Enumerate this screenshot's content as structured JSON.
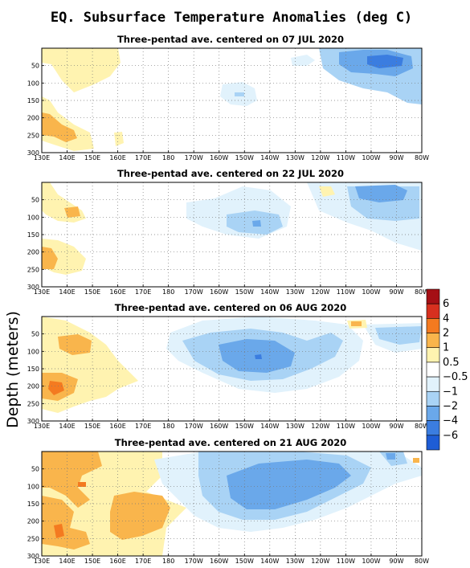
{
  "chart_data": {
    "type": "heatmap",
    "title": "EQ. Subsurface Temperature Anomalies (deg C)",
    "ylabel": "Depth (meters)",
    "x_ticks": [
      "130E",
      "140E",
      "150E",
      "160E",
      "170E",
      "180",
      "170W",
      "160W",
      "150W",
      "140W",
      "130W",
      "120W",
      "110W",
      "100W",
      "90W",
      "80W"
    ],
    "y_ticks": [
      "50",
      "100",
      "150",
      "200",
      "250",
      "300"
    ],
    "xlim": [
      "130E",
      "80W"
    ],
    "ylim": [
      0,
      300
    ],
    "grid": true,
    "colorbar": {
      "labels": [
        "6",
        "4",
        "2",
        "1",
        "0.5",
        "−0.5",
        "−1",
        "−2",
        "−4",
        "−6"
      ],
      "levels": [
        6,
        4,
        2,
        1,
        0.5,
        -0.5,
        -1,
        -2,
        -4,
        -6
      ],
      "colors": [
        "#a50f15",
        "#d7301f",
        "#f47a20",
        "#f9b54c",
        "#fff3b0",
        "#ffffff",
        "#e1f2fc",
        "#a9d3f5",
        "#6aa8ea",
        "#3b7de0",
        "#1e5dd6"
      ]
    },
    "panels": [
      {
        "subtitle": "Three-pentad ave. centered on 07 JUL 2020",
        "features": [
          {
            "lon": 137,
            "depth": 80,
            "anomaly": 0.8
          },
          {
            "lon": 140,
            "depth": 235,
            "anomaly": 1.5
          },
          {
            "lon": 160,
            "depth": 255,
            "anomaly": 0.8
          },
          {
            "lon": 210,
            "depth": 115,
            "anomaly": -0.6
          },
          {
            "lon": 258,
            "depth": 60,
            "anomaly": -1.5
          },
          {
            "lon": 255,
            "depth": 55,
            "anomaly": -2.5
          }
        ]
      },
      {
        "subtitle": "Three-pentad ave. centered on 22 JUL 2020",
        "features": [
          {
            "lon": 140,
            "depth": 90,
            "anomaly": 1.2
          },
          {
            "lon": 136,
            "depth": 210,
            "anomaly": 1.5
          },
          {
            "lon": 210,
            "depth": 120,
            "anomaly": -1.3
          },
          {
            "lon": 255,
            "depth": 75,
            "anomaly": -1.5
          },
          {
            "lon": 258,
            "depth": 45,
            "anomaly": -2.2
          }
        ]
      },
      {
        "subtitle": "Three-pentad ave. centered on 06 AUG 2020",
        "features": [
          {
            "lon": 143,
            "depth": 90,
            "anomaly": 1.2
          },
          {
            "lon": 137,
            "depth": 220,
            "anomaly": 1.8
          },
          {
            "lon": 210,
            "depth": 115,
            "anomaly": -2.6
          },
          {
            "lon": 223,
            "depth": 90,
            "anomaly": -1.3
          },
          {
            "lon": 253,
            "depth": 25,
            "anomaly": 1.2
          }
        ]
      },
      {
        "subtitle": "Three-pentad ave. centered on 21 AUG 2020",
        "features": [
          {
            "lon": 141,
            "depth": 100,
            "anomaly": 2.2
          },
          {
            "lon": 162,
            "depth": 190,
            "anomaly": 1.5
          },
          {
            "lon": 136,
            "depth": 225,
            "anomaly": 2.0
          },
          {
            "lon": 223,
            "depth": 120,
            "anomaly": -2.4
          },
          {
            "lon": 263,
            "depth": 30,
            "anomaly": -1.5
          }
        ]
      }
    ]
  }
}
